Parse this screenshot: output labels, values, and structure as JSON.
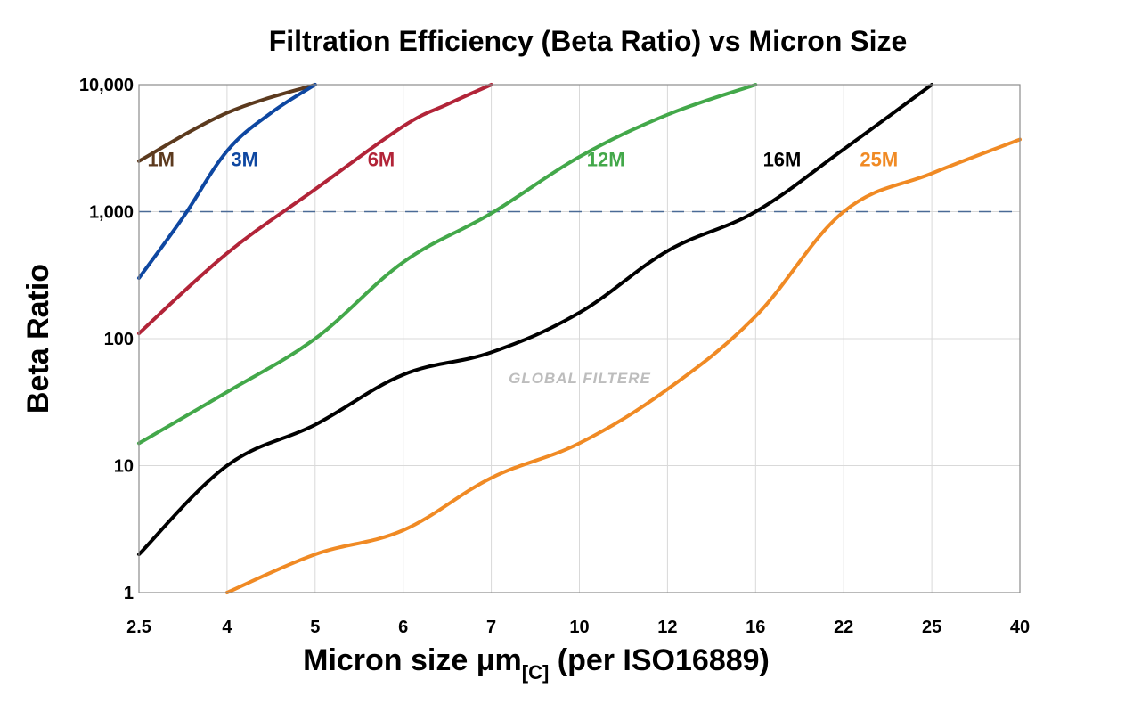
{
  "chart_data": {
    "type": "line",
    "title": "Filtration Efficiency (Beta Ratio) vs Micron Size",
    "xlabel": {
      "main": "Micron size μm",
      "sub": "[C]",
      "suffix": " (per ISO16889)"
    },
    "ylabel": "Beta Ratio",
    "x_scale": "categorical",
    "y_scale": "log",
    "ylim": [
      1,
      10000
    ],
    "grid": true,
    "categories": [
      "2.5",
      "4",
      "5",
      "6",
      "7",
      "10",
      "12",
      "16",
      "22",
      "25",
      "40"
    ],
    "y_ticks": [
      {
        "value": 1,
        "label": "1"
      },
      {
        "value": 10,
        "label": "10"
      },
      {
        "value": 100,
        "label": "100"
      },
      {
        "value": 1000,
        "label": "1,000"
      },
      {
        "value": 10000,
        "label": "10,000"
      }
    ],
    "reference_line": {
      "value": 1000,
      "style": "dashed",
      "color": "#4a6a96"
    },
    "watermark": "GLOBAL FILTERE",
    "series": [
      {
        "name": "1M",
        "color": "#5c3a1e",
        "points": [
          [
            0,
            2500
          ],
          [
            1,
            6000
          ],
          [
            2,
            10000
          ]
        ],
        "label_at": [
          0.25,
          2200
        ]
      },
      {
        "name": "3M",
        "color": "#0e47a1",
        "points": [
          [
            0,
            300
          ],
          [
            0.5,
            900
          ],
          [
            1,
            3000
          ],
          [
            1.5,
            6000
          ],
          [
            2,
            10000
          ]
        ],
        "label_at": [
          1.2,
          2200
        ]
      },
      {
        "name": "6M",
        "color": "#b22438",
        "points": [
          [
            0,
            110
          ],
          [
            1,
            470
          ],
          [
            2,
            1500
          ],
          [
            3,
            4700
          ],
          [
            3.5,
            7000
          ],
          [
            4,
            10000
          ]
        ],
        "label_at": [
          2.75,
          2200
        ]
      },
      {
        "name": "12M",
        "color": "#43a84a",
        "points": [
          [
            0,
            15
          ],
          [
            1,
            38
          ],
          [
            2,
            100
          ],
          [
            3,
            400
          ],
          [
            4,
            970
          ],
          [
            5,
            2700
          ],
          [
            6,
            5800
          ],
          [
            7,
            10000
          ]
        ],
        "label_at": [
          5.3,
          2200
        ]
      },
      {
        "name": "16M",
        "color": "#000000",
        "points": [
          [
            0,
            2
          ],
          [
            1,
            10
          ],
          [
            2,
            21
          ],
          [
            3,
            52
          ],
          [
            4,
            78
          ],
          [
            5,
            160
          ],
          [
            6,
            490
          ],
          [
            7,
            1000
          ],
          [
            8,
            3100
          ],
          [
            9,
            10000
          ]
        ],
        "label_at": [
          7.3,
          2200
        ]
      },
      {
        "name": "25M",
        "color": "#f08a24",
        "points": [
          [
            1,
            1
          ],
          [
            2,
            2
          ],
          [
            3,
            3.1
          ],
          [
            4,
            8
          ],
          [
            5,
            15
          ],
          [
            6,
            40
          ],
          [
            7,
            150
          ],
          [
            8,
            1000
          ],
          [
            9,
            2000
          ],
          [
            10,
            3700
          ]
        ],
        "label_at": [
          8.4,
          2200
        ]
      }
    ]
  }
}
